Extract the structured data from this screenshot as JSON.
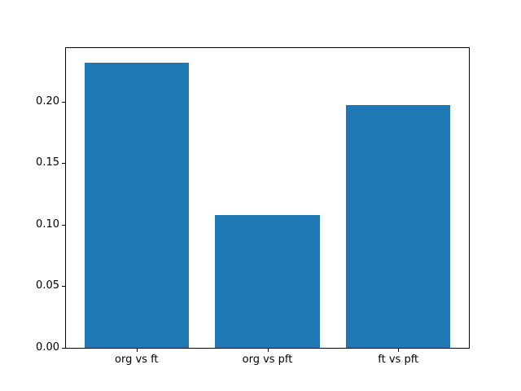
{
  "figure": {
    "background": "#ffffff",
    "spine_color": "#000000",
    "tick_color": "#000000",
    "bar_color": "#1f77b4"
  },
  "chart_data": {
    "type": "bar",
    "categories": [
      "org vs ft",
      "org vs pft",
      "ft vs pft"
    ],
    "values": [
      0.232,
      0.108,
      0.197
    ],
    "title": "",
    "xlabel": "",
    "ylabel": "",
    "bar_width": 0.8,
    "xlim": [
      -0.54,
      2.54
    ],
    "ylim": [
      0,
      0.2436
    ],
    "yticks": [
      0.0,
      0.05,
      0.1,
      0.15,
      0.2
    ],
    "ytick_labels": [
      "0.00",
      "0.05",
      "0.10",
      "0.15",
      "0.20"
    ],
    "grid": false,
    "legend": null
  }
}
